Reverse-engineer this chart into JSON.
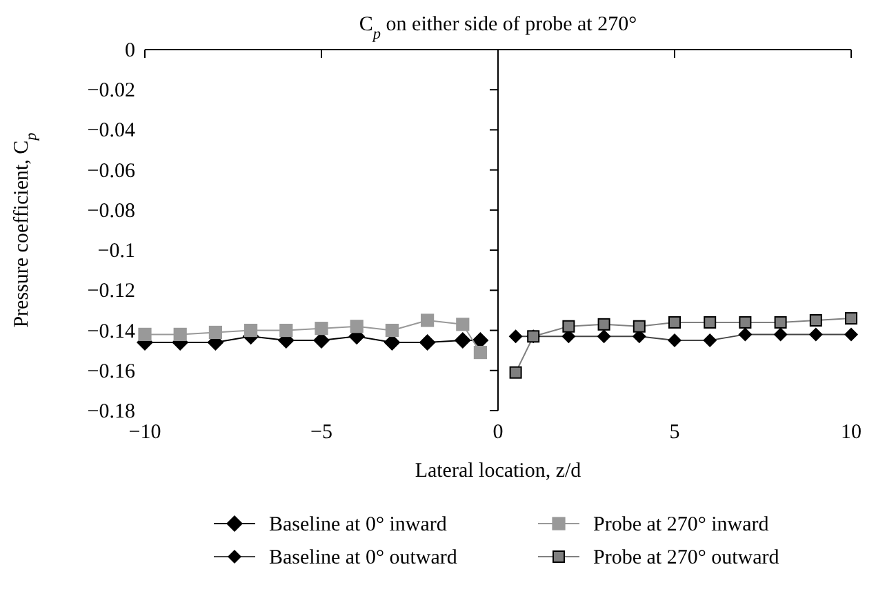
{
  "chart_data": {
    "type": "line",
    "title": "C$_{p}$ on either side of probe at 270°",
    "xlabel": "Lateral location, z/d",
    "ylabel": "Pressure coefficient, C$_{p}$",
    "xlim": [
      -10,
      10
    ],
    "xticks": [
      -10,
      -5,
      0,
      5,
      10
    ],
    "ylim": [
      -0.18,
      0
    ],
    "yticks": [
      -0.18,
      -0.16,
      -0.14,
      -0.12,
      -0.1,
      -0.08,
      -0.06,
      -0.04,
      -0.02,
      0
    ],
    "legend": "bottom",
    "series": [
      {
        "name": "Baseline at 0° inward",
        "color": "#000000",
        "marker": "diamond",
        "x": [
          -10,
          -9,
          -8,
          -7,
          -6,
          -5,
          -4,
          -3,
          -2,
          -1,
          -0.5
        ],
        "values": [
          -0.146,
          -0.146,
          -0.146,
          -0.143,
          -0.145,
          -0.145,
          -0.143,
          -0.146,
          -0.146,
          -0.145,
          -0.145
        ]
      },
      {
        "name": "Baseline at 0° outward",
        "color": "#000000",
        "marker": "diamond",
        "x": [
          0.5,
          1,
          2,
          3,
          4,
          5,
          6,
          7,
          8,
          9,
          10
        ],
        "values": [
          -0.143,
          -0.143,
          -0.143,
          -0.143,
          -0.143,
          -0.145,
          -0.145,
          -0.142,
          -0.142,
          -0.142,
          -0.142
        ]
      },
      {
        "name": "Probe at 270° inward",
        "color": "#999999",
        "marker": "square",
        "x": [
          -10,
          -9,
          -8,
          -7,
          -6,
          -5,
          -4,
          -3,
          -2,
          -1,
          -0.5
        ],
        "values": [
          -0.142,
          -0.142,
          -0.141,
          -0.14,
          -0.14,
          -0.139,
          -0.138,
          -0.14,
          -0.135,
          -0.137,
          -0.151
        ]
      },
      {
        "name": "Probe at 270° outward",
        "color": "#808080",
        "marker": "square",
        "x": [
          0.5,
          1,
          2,
          3,
          4,
          5,
          6,
          7,
          8,
          9,
          10
        ],
        "values": [
          -0.161,
          -0.143,
          -0.138,
          -0.137,
          -0.138,
          -0.136,
          -0.136,
          -0.136,
          -0.136,
          -0.135,
          -0.134
        ]
      }
    ]
  }
}
